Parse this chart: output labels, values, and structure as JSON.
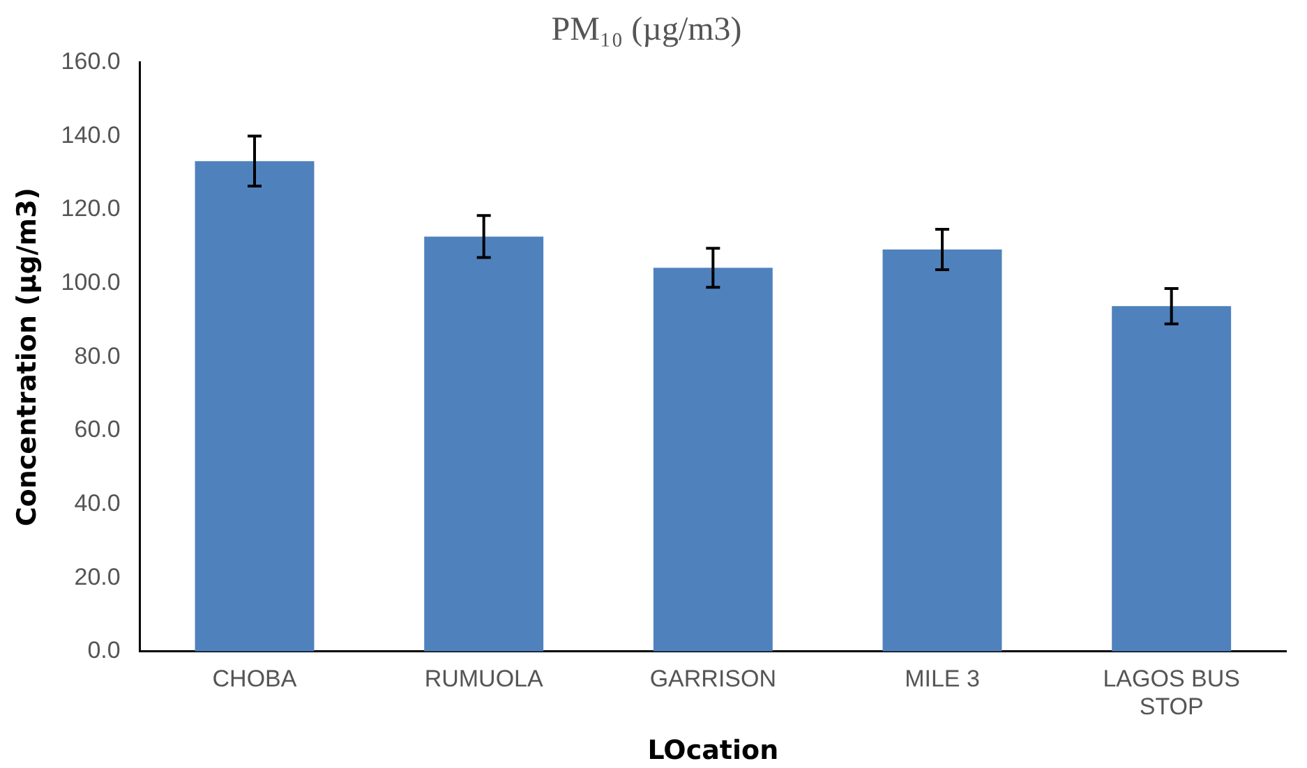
{
  "chart_data": {
    "type": "bar",
    "title": "PM₁₀ (µg/m3)",
    "xlabel": "LOcation",
    "ylabel": "Concentration (µg/m3)",
    "categories": [
      "CHOBA",
      "RUMUOLA",
      "GARRISON",
      "MILE 3",
      "LAGOS BUS STOP"
    ],
    "values": [
      133.2,
      112.7,
      104.2,
      109.2,
      93.8
    ],
    "errors": [
      6.8,
      5.7,
      5.3,
      5.5,
      4.8
    ],
    "color": "#4f81bd",
    "ylim": [
      0,
      160
    ],
    "yticks": [
      {
        "value": 0,
        "label": "0.0"
      },
      {
        "value": 20,
        "label": "20.0"
      },
      {
        "value": 40,
        "label": "40.0"
      },
      {
        "value": 60,
        "label": "60.0"
      },
      {
        "value": 80,
        "label": "80.0"
      },
      {
        "value": 100,
        "label": "100.0"
      },
      {
        "value": 120,
        "label": "120.0"
      },
      {
        "value": 140,
        "label": "140.0"
      },
      {
        "value": 160,
        "label": "160.0"
      }
    ],
    "grid": false,
    "legend": false
  }
}
